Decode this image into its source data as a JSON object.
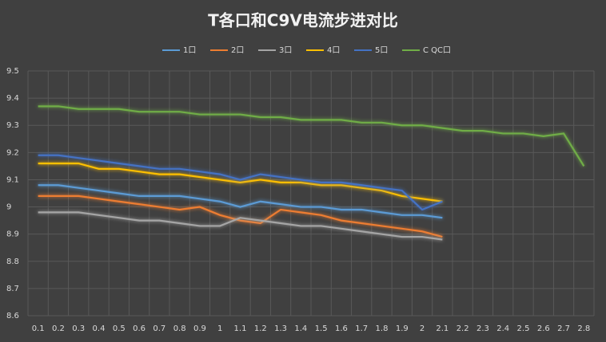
{
  "chart_data": {
    "type": "line",
    "title": "T各口和C9V电流步进对比",
    "categories": [
      "0.1",
      "0.2",
      "0.3",
      "0.4",
      "0.5",
      "0.6",
      "0.7",
      "0.8",
      "0.9",
      "1",
      "1.1",
      "1.2",
      "1.3",
      "1.4",
      "1.5",
      "1.6",
      "1.7",
      "1.8",
      "1.9",
      "2",
      "2.1",
      "2.2",
      "2.3",
      "2.4",
      "2.5",
      "2.6",
      "2.7",
      "2.8"
    ],
    "series": [
      {
        "name": "1口",
        "color": "#5b9bd5",
        "values": [
          9.08,
          9.08,
          9.07,
          9.06,
          9.05,
          9.04,
          9.04,
          9.04,
          9.03,
          9.02,
          9.0,
          9.02,
          9.01,
          9.0,
          9.0,
          8.99,
          8.99,
          8.98,
          8.97,
          8.97,
          8.96,
          null,
          null,
          null,
          null,
          null,
          null,
          null
        ]
      },
      {
        "name": "2口",
        "color": "#ed7d31",
        "values": [
          9.04,
          9.04,
          9.04,
          9.03,
          9.02,
          9.01,
          9.0,
          8.99,
          9.0,
          8.97,
          8.95,
          8.94,
          8.99,
          8.98,
          8.97,
          8.95,
          8.94,
          8.93,
          8.92,
          8.91,
          8.89,
          null,
          null,
          null,
          null,
          null,
          null,
          null
        ]
      },
      {
        "name": "3口",
        "color": "#a5a5a5",
        "values": [
          8.98,
          8.98,
          8.98,
          8.97,
          8.96,
          8.95,
          8.95,
          8.94,
          8.93,
          8.93,
          8.96,
          8.95,
          8.94,
          8.93,
          8.93,
          8.92,
          8.91,
          8.9,
          8.89,
          8.89,
          8.88,
          null,
          null,
          null,
          null,
          null,
          null,
          null
        ]
      },
      {
        "name": "4口",
        "color": "#ffc000",
        "values": [
          9.16,
          9.16,
          9.16,
          9.14,
          9.14,
          9.13,
          9.12,
          9.12,
          9.11,
          9.1,
          9.09,
          9.1,
          9.09,
          9.09,
          9.08,
          9.08,
          9.07,
          9.06,
          9.04,
          9.03,
          9.02,
          null,
          null,
          null,
          null,
          null,
          null,
          null
        ]
      },
      {
        "name": "5口",
        "color": "#4472c4",
        "values": [
          9.19,
          9.19,
          9.18,
          9.17,
          9.16,
          9.15,
          9.14,
          9.14,
          9.13,
          9.12,
          9.1,
          9.12,
          9.11,
          9.1,
          9.09,
          9.09,
          9.08,
          9.07,
          9.06,
          8.99,
          9.02,
          null,
          null,
          null,
          null,
          null,
          null,
          null
        ]
      },
      {
        "name": "C QC口",
        "color": "#70ad47",
        "values": [
          9.37,
          9.37,
          9.36,
          9.36,
          9.36,
          9.35,
          9.35,
          9.35,
          9.34,
          9.34,
          9.34,
          9.33,
          9.33,
          9.32,
          9.32,
          9.32,
          9.31,
          9.31,
          9.3,
          9.3,
          9.29,
          9.28,
          9.28,
          9.27,
          9.27,
          9.26,
          9.27,
          9.15
        ]
      }
    ],
    "ylim": [
      8.6,
      9.5
    ],
    "yticks": [
      8.6,
      8.7,
      8.8,
      8.9,
      9,
      9.1,
      9.2,
      9.3,
      9.4,
      9.5
    ],
    "grid": true
  }
}
